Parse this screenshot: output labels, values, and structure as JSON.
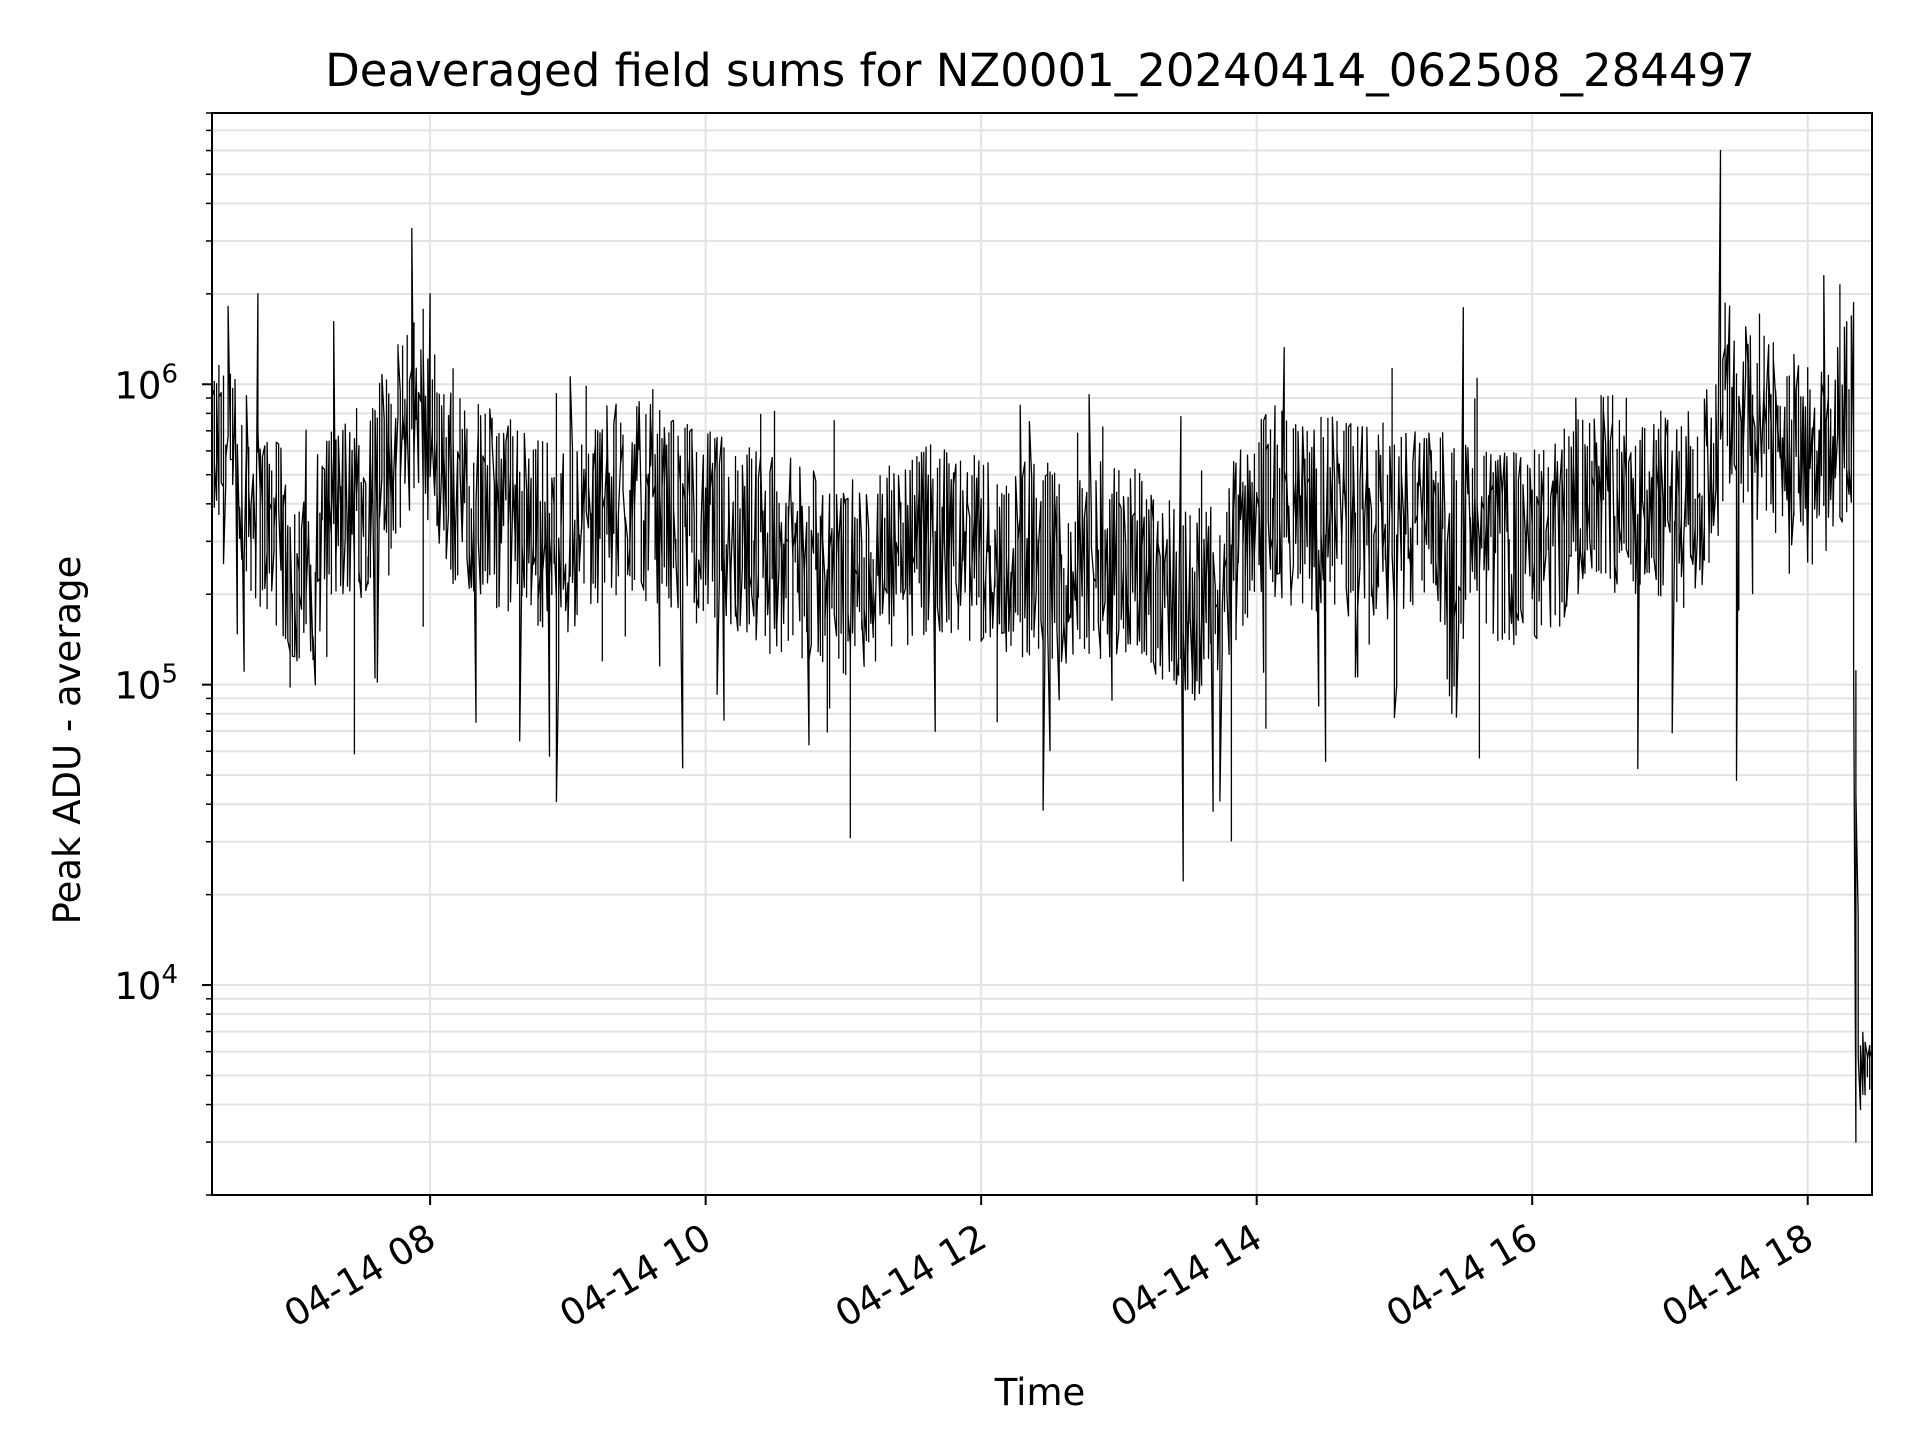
{
  "chart_data": {
    "type": "line",
    "title": "Deaveraged field sums for NZ0001_20240414_062508_284497",
    "xlabel": "Time",
    "ylabel": "Peak ADU - average",
    "y_scale": "log",
    "ylim": [
      2000,
      8000000
    ],
    "y_ticks": [
      {
        "value": 10000,
        "base": "10",
        "exp": "4"
      },
      {
        "value": 100000,
        "base": "10",
        "exp": "5"
      },
      {
        "value": 1000000,
        "base": "10",
        "exp": "6"
      }
    ],
    "xlim": [
      "2024-04-14 06:25",
      "2024-04-14 18:28"
    ],
    "x_ticks": [
      {
        "value": "2024-04-14 08:00",
        "label": "04-14 08"
      },
      {
        "value": "2024-04-14 10:00",
        "label": "04-14 10"
      },
      {
        "value": "2024-04-14 12:00",
        "label": "04-14 12"
      },
      {
        "value": "2024-04-14 14:00",
        "label": "04-14 14"
      },
      {
        "value": "2024-04-14 16:00",
        "label": "04-14 16"
      },
      {
        "value": "2024-04-14 18:00",
        "label": "04-14 18"
      }
    ],
    "grid": true,
    "series": [
      {
        "color": "#000000",
        "x": [
          "2024-04-14 06:25",
          "2024-04-14 06:40",
          "2024-04-14 06:55",
          "2024-04-14 07:05",
          "2024-04-14 07:15",
          "2024-04-14 07:30",
          "2024-04-14 07:45",
          "2024-04-14 07:55",
          "2024-04-14 08:10",
          "2024-04-14 08:25",
          "2024-04-14 08:40",
          "2024-04-14 09:00",
          "2024-04-14 09:15",
          "2024-04-14 09:30",
          "2024-04-14 09:45",
          "2024-04-14 10:00",
          "2024-04-14 10:20",
          "2024-04-14 10:40",
          "2024-04-14 11:00",
          "2024-04-14 11:20",
          "2024-04-14 11:40",
          "2024-04-14 12:00",
          "2024-04-14 12:20",
          "2024-04-14 12:40",
          "2024-04-14 13:00",
          "2024-04-14 13:20",
          "2024-04-14 13:35",
          "2024-04-14 13:45",
          "2024-04-14 14:00",
          "2024-04-14 14:20",
          "2024-04-14 14:40",
          "2024-04-14 15:00",
          "2024-04-14 15:20",
          "2024-04-14 15:35",
          "2024-04-14 15:50",
          "2024-04-14 16:10",
          "2024-04-14 16:30",
          "2024-04-14 16:45",
          "2024-04-14 17:00",
          "2024-04-14 17:15",
          "2024-04-14 17:25",
          "2024-04-14 17:40",
          "2024-04-14 17:55",
          "2024-04-14 18:05",
          "2024-04-14 18:15",
          "2024-04-14 18:20",
          "2024-04-14 18:23",
          "2024-04-14 18:28"
        ],
        "y": [
          600000,
          450000,
          300000,
          200000,
          350000,
          400000,
          600000,
          900000,
          450000,
          400000,
          350000,
          300000,
          400000,
          420000,
          380000,
          330000,
          300000,
          260000,
          220000,
          250000,
          300000,
          280000,
          260000,
          240000,
          270000,
          220000,
          180000,
          200000,
          420000,
          380000,
          360000,
          350000,
          330000,
          300000,
          280000,
          300000,
          500000,
          420000,
          380000,
          400000,
          900000,
          700000,
          600000,
          500000,
          700000,
          900000,
          5000,
          6000
        ]
      }
    ],
    "peaks": {
      "x": [
        "2024-04-14 06:45",
        "2024-04-14 07:53",
        "2024-04-14 08:00",
        "2024-04-14 15:30",
        "2024-04-14 17:22",
        "2024-04-14 18:08"
      ],
      "y": [
        2000000,
        3300000,
        2000000,
        1800000,
        6000000,
        2300000
      ]
    },
    "dips": {
      "x": [
        "2024-04-14 07:10",
        "2024-04-14 08:20",
        "2024-04-14 08:40",
        "2024-04-14 10:45",
        "2024-04-14 13:45",
        "2024-04-14 17:30",
        "2024-04-14 18:21"
      ],
      "y": [
        100000,
        75000,
        65000,
        63000,
        41000,
        48000,
        3000
      ]
    }
  }
}
